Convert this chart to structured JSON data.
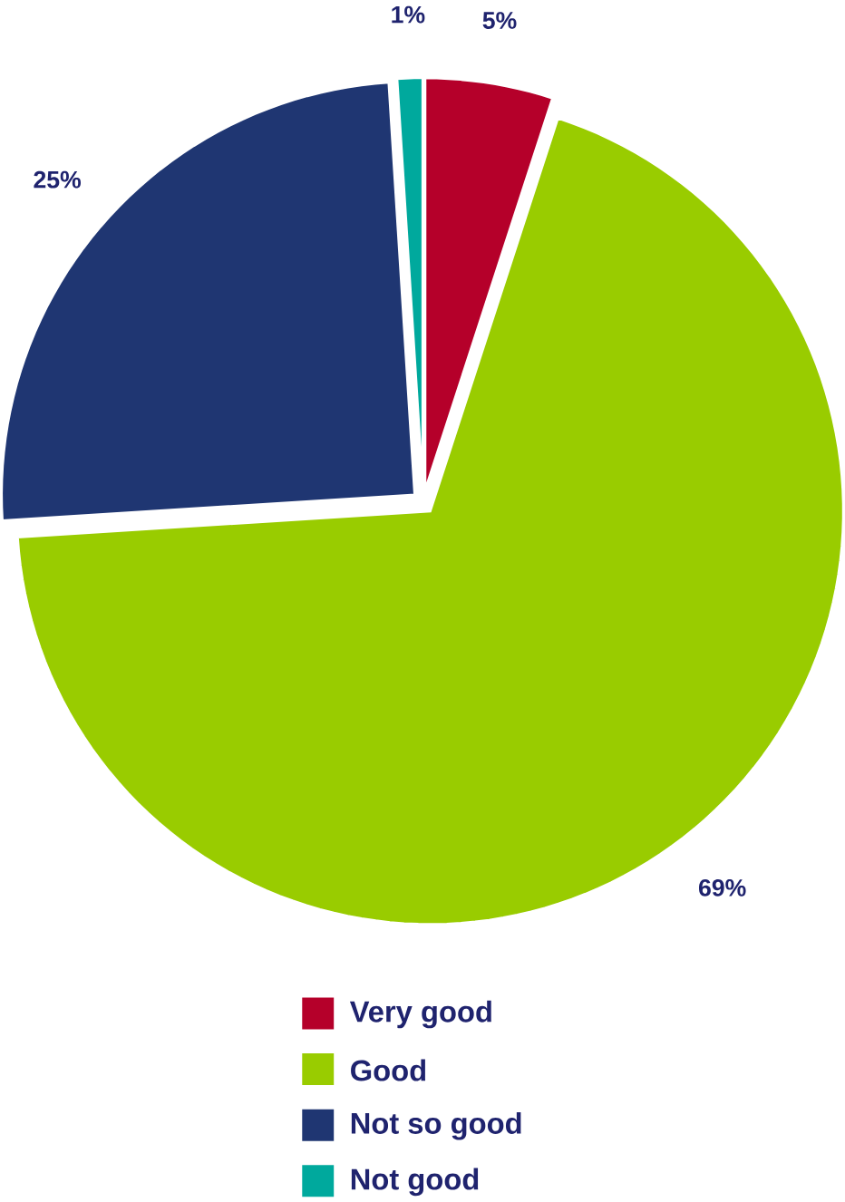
{
  "chart_data": {
    "type": "pie",
    "categories": [
      "Very good",
      "Good",
      "Not so good",
      "Not good"
    ],
    "values": [
      5,
      69,
      25,
      1
    ],
    "colors": [
      "#b5002a",
      "#99cc00",
      "#1f3672",
      "#00a99d"
    ],
    "value_labels": [
      "5%",
      "69%",
      "25%",
      "1%"
    ],
    "legend": "bottom"
  }
}
